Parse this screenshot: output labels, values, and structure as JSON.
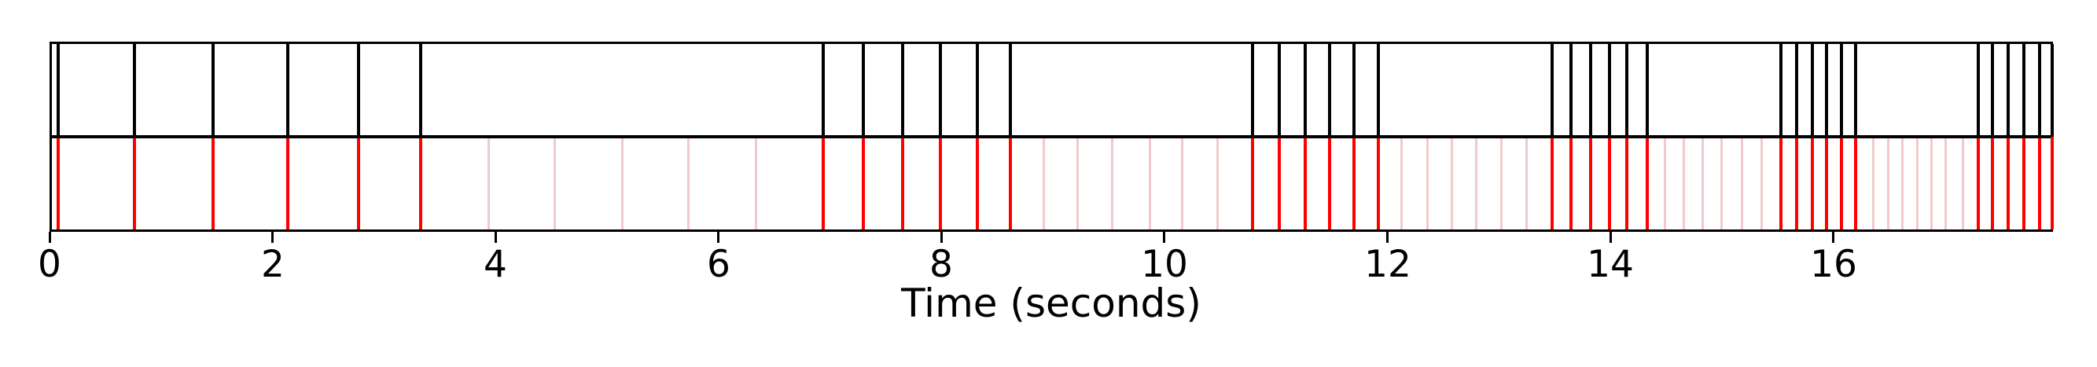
{
  "chart_data": {
    "type": "event-vlines",
    "xlabel": "Time (seconds)",
    "xlim": [
      0,
      17.97
    ],
    "xticks": [
      0,
      2,
      4,
      6,
      8,
      10,
      12,
      14,
      16
    ],
    "xtick_labels": [
      "0",
      "2",
      "4",
      "6",
      "8",
      "10",
      "12",
      "14",
      "16"
    ],
    "grid": false,
    "legend": "none",
    "colors": {
      "top_events": "#000000",
      "bottom_strong_events": "#ff0000",
      "bottom_weak_events": "#f0cacc",
      "axis": "#000000",
      "background": "#ffffff"
    },
    "series": [
      {
        "name": "top-black-events",
        "row": "top",
        "color": "#000000",
        "times": [
          0.08,
          0.76,
          1.47,
          2.14,
          2.77,
          3.33,
          6.94,
          7.3,
          7.65,
          7.99,
          8.32,
          8.62,
          10.79,
          11.03,
          11.26,
          11.48,
          11.7,
          11.92,
          13.48,
          13.65,
          13.82,
          13.99,
          14.15,
          14.33,
          15.53,
          15.67,
          15.81,
          15.94,
          16.07,
          16.2,
          17.3,
          17.43,
          17.57,
          17.71,
          17.85,
          17.96
        ]
      },
      {
        "name": "bottom-red-events",
        "row": "bottom",
        "color": "#ff0000",
        "times": [
          0.08,
          0.76,
          1.47,
          2.14,
          2.77,
          3.33,
          6.94,
          7.3,
          7.65,
          7.99,
          8.32,
          8.62,
          10.79,
          11.03,
          11.26,
          11.48,
          11.7,
          11.92,
          13.48,
          13.65,
          13.82,
          13.99,
          14.15,
          14.33,
          15.53,
          15.67,
          15.81,
          15.94,
          16.07,
          16.2,
          17.3,
          17.43,
          17.57,
          17.71,
          17.85,
          17.96
        ]
      },
      {
        "name": "bottom-pink-events",
        "row": "bottom",
        "color": "#f0cacc",
        "times": [
          3.94,
          4.53,
          5.14,
          5.73,
          6.34,
          8.92,
          9.22,
          9.53,
          9.87,
          10.16,
          10.48,
          12.13,
          12.36,
          12.58,
          12.8,
          13.02,
          13.25,
          14.49,
          14.66,
          14.83,
          15.0,
          15.18,
          15.36,
          16.36,
          16.49,
          16.62,
          16.75,
          16.88,
          17.01,
          17.16
        ]
      }
    ]
  }
}
